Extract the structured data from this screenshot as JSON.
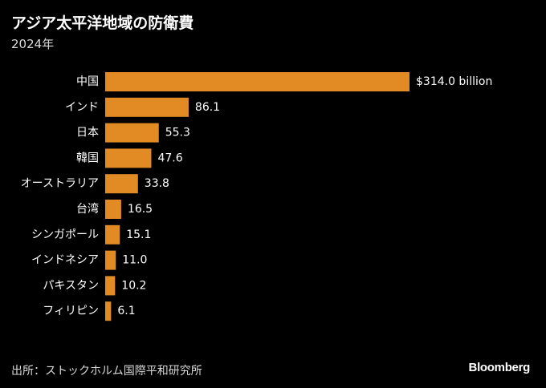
{
  "title": "アジア太平洋地域の防衛費",
  "subtitle": "2024年",
  "source": "出所：ストックホルム国際平和研究所",
  "brand": "Bloomberg",
  "colors": {
    "bar": "#e28b25",
    "background": "#000000",
    "text": "#ffffff",
    "muted": "#d9d9d9"
  },
  "chart_data": {
    "type": "bar",
    "orientation": "horizontal",
    "categories": [
      "中国",
      "インド",
      "日本",
      "韓国",
      "オーストラリア",
      "台湾",
      "シンガポール",
      "インドネシア",
      "パキスタン",
      "フィリピン"
    ],
    "values": [
      314.0,
      86.1,
      55.3,
      47.6,
      33.8,
      16.5,
      15.1,
      11.0,
      10.2,
      6.1
    ],
    "value_labels": [
      "$314.0 billion",
      "86.1",
      "55.3",
      "47.6",
      "33.8",
      "16.5",
      "15.1",
      "11.0",
      "10.2",
      "6.1"
    ],
    "xlim": [
      0,
      314.0
    ],
    "grid": false,
    "legend": "none"
  }
}
